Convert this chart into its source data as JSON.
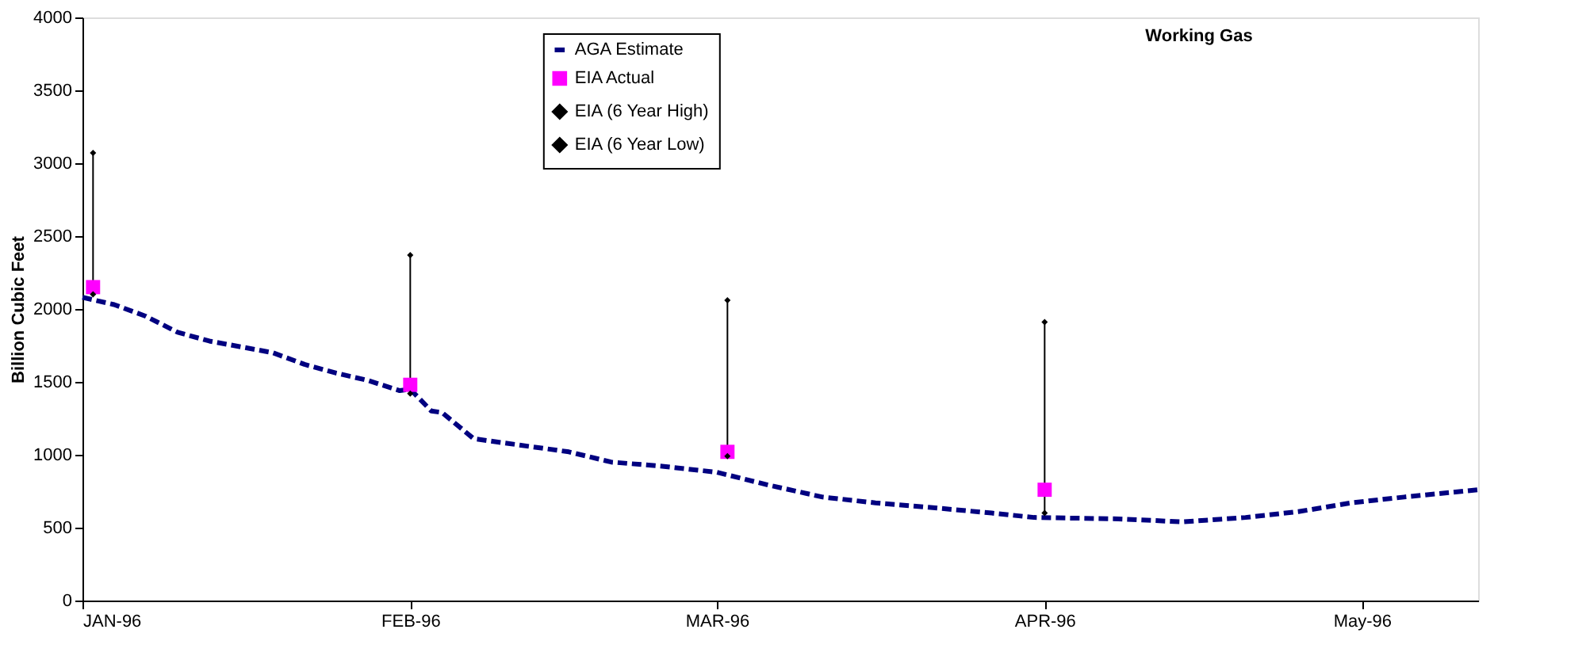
{
  "chart_data": {
    "type": "line",
    "title": "Working Gas",
    "ylabel": "Billion Cubic Feet",
    "xlim": [
      "1996-01-01",
      "1996-05-12"
    ],
    "xticks": [
      {
        "value": "1996-01-01",
        "label": "JAN-96"
      },
      {
        "value": "1996-02-01",
        "label": "FEB-96"
      },
      {
        "value": "1996-03-01",
        "label": "MAR-96"
      },
      {
        "value": "1996-04-01",
        "label": "APR-96"
      },
      {
        "value": "1996-05-01",
        "label": "May-96"
      }
    ],
    "ylim": [
      0,
      4000
    ],
    "yticks": [
      0,
      500,
      1000,
      1500,
      2000,
      2500,
      3000,
      3500,
      4000
    ],
    "grid": false,
    "legend": "top",
    "series": [
      {
        "name": "AGA Estimate",
        "line_style": "dashed",
        "color": "#000080",
        "x": [
          "1996-01-01",
          "1996-01-04",
          "1996-01-07",
          "1996-01-10",
          "1996-01-13",
          "1996-01-16",
          "1996-01-19",
          "1996-01-22",
          "1996-01-25",
          "1996-01-28",
          "1996-01-31",
          "1996-02-01",
          "1996-02-03",
          "1996-02-04",
          "1996-02-06",
          "1996-02-07",
          "1996-02-10",
          "1996-02-16",
          "1996-02-20",
          "1996-02-25",
          "1996-03-01",
          "1996-03-06",
          "1996-03-11",
          "1996-03-16",
          "1996-03-21",
          "1996-03-27",
          "1996-03-31",
          "1996-04-08",
          "1996-04-14",
          "1996-04-20",
          "1996-04-25",
          "1996-04-30",
          "1996-05-05",
          "1996-05-12"
        ],
        "values": [
          2080,
          2030,
          1950,
          1840,
          1780,
          1740,
          1700,
          1620,
          1560,
          1510,
          1440,
          1450,
          1300,
          1290,
          1170,
          1110,
          1080,
          1020,
          950,
          920,
          880,
          790,
          710,
          670,
          640,
          600,
          570,
          560,
          540,
          570,
          610,
          670,
          710,
          760
        ]
      },
      {
        "name": "EIA Actual",
        "type": "scatter",
        "marker": "square",
        "color": "#ff00ff",
        "x": [
          "1996-01-02",
          "1996-02-01",
          "1996-03-02",
          "1996-04-01"
        ],
        "values": [
          2150,
          1480,
          1020,
          760
        ],
        "errors": [
          [
            2100,
            3070
          ],
          [
            1420,
            2370
          ],
          [
            990,
            2060
          ],
          [
            600,
            1910
          ]
        ]
      },
      {
        "name": "EIA (6 Year High)",
        "type": "scatter",
        "marker": "diamond",
        "color": "#000000",
        "x": [
          "1996-01-02",
          "1996-02-01",
          "1996-03-02",
          "1996-04-01"
        ],
        "values": [
          3070,
          2370,
          2060,
          1910
        ]
      },
      {
        "name": "EIA (6 Year Low)",
        "type": "scatter",
        "marker": "diamond",
        "color": "#000000",
        "x": [
          "1996-01-02",
          "1996-02-01",
          "1996-03-02",
          "1996-04-01"
        ],
        "values": [
          2100,
          1420,
          990,
          600
        ]
      }
    ]
  }
}
